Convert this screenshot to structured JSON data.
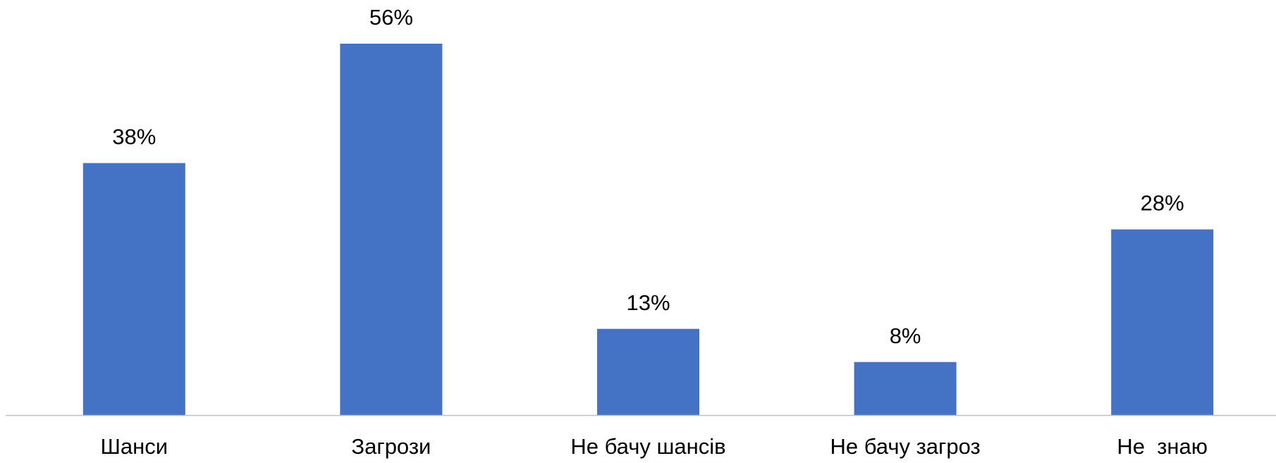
{
  "chart_data": {
    "type": "bar",
    "categories": [
      "Шанси",
      "Загрози",
      "Не бачу шансів",
      "Не бачу загроз",
      "Не  знаю"
    ],
    "values": [
      38,
      56,
      13,
      8,
      28
    ],
    "value_labels": [
      "38%",
      "56%",
      "13%",
      "8%",
      "28%"
    ],
    "color": "#4472c4"
  }
}
